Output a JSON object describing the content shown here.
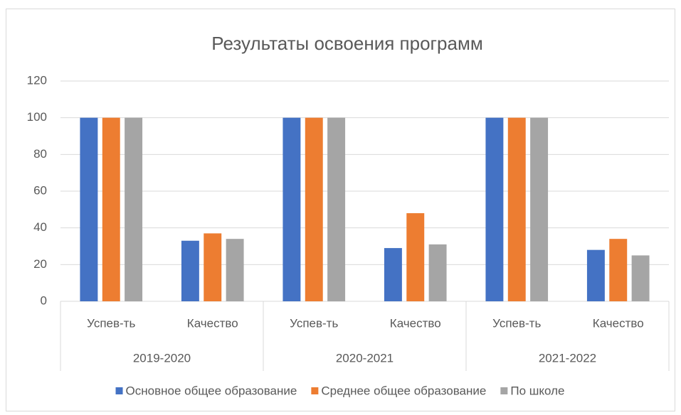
{
  "chart_data": {
    "type": "bar",
    "title": "Результаты освоения программ",
    "categories": [
      "Успев-ть",
      "Качество",
      "Успев-ть",
      "Качество",
      "Успев-ть",
      "Качество"
    ],
    "groups": [
      "2019-2020",
      "2020-2021",
      "2021-2022"
    ],
    "series": [
      {
        "name": "Основное общее образование",
        "color": "#4472c4",
        "values": [
          100,
          33,
          100,
          29,
          100,
          28
        ]
      },
      {
        "name": "Среднее общее образование",
        "color": "#ed7d31",
        "values": [
          100,
          37,
          100,
          48,
          100,
          34
        ]
      },
      {
        "name": "По школе",
        "color": "#a5a5a5",
        "values": [
          100,
          34,
          100,
          31,
          100,
          25
        ]
      }
    ],
    "ylim": [
      0,
      120
    ],
    "yticks": [
      0,
      20,
      40,
      60,
      80,
      100,
      120
    ],
    "grid": true,
    "legend": "bottom"
  }
}
